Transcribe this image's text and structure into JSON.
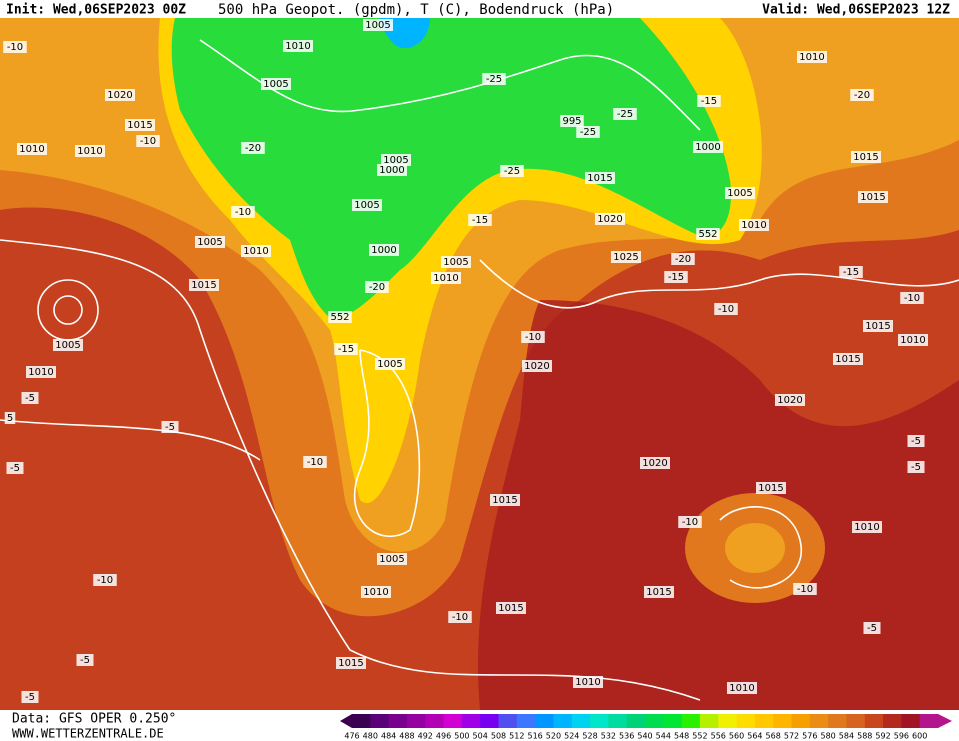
{
  "header": {
    "init": "Init: Wed,06SEP2023 00Z",
    "title": "500 hPa Geopot. (gpdm), T (C), Bodendruck (hPa)",
    "valid": "Valid: Wed,06SEP2023 12Z"
  },
  "footer": {
    "source": "Data: GFS OPER 0.250°",
    "site": "WWW.WETTERZENTRALE.DE"
  },
  "map": {
    "contour_labels": [
      "1010",
      "1005",
      "1005",
      "1020",
      "1015",
      "1010",
      "1010",
      "-10",
      "-20",
      "1005",
      "1000",
      "1005",
      "-10",
      "1005",
      "1010",
      "1000",
      "1005",
      "1010",
      "1015",
      "-20",
      "552",
      "1005",
      "1010",
      "-15",
      "1005",
      "-10",
      "1020",
      "-5",
      "-5",
      "-5",
      "-10",
      "1015",
      "1005",
      "1010",
      "-10",
      "-10",
      "1015",
      "1015",
      "-5",
      "-5",
      "1010",
      "1010",
      "1020",
      "1020",
      "1015",
      "-10",
      "1015",
      "-10",
      "1010",
      "-5",
      "-25",
      "-25",
      "-25",
      "995",
      "1000",
      "-25",
      "1015",
      "1005",
      "1010",
      "552",
      "1020",
      "1025",
      "-20",
      "-15",
      "-15",
      "-15",
      "1010",
      "-20",
      "1015",
      "1015",
      "-15",
      "-10",
      "-10",
      "1015",
      "1010",
      "1015",
      "-5",
      "-5",
      "-10",
      "5"
    ]
  },
  "colorbar": {
    "labels": [
      "476",
      "480",
      "484",
      "488",
      "492",
      "496",
      "500",
      "504",
      "508",
      "512",
      "516",
      "520",
      "524",
      "528",
      "532",
      "536",
      "540",
      "544",
      "548",
      "552",
      "556",
      "560",
      "564",
      "568",
      "572",
      "576",
      "580",
      "584",
      "588",
      "592",
      "596",
      "600"
    ],
    "colors": [
      "#3c0050",
      "#5a0078",
      "#78008c",
      "#9600a0",
      "#b400b4",
      "#d200d2",
      "#a000e6",
      "#7800f0",
      "#5050f0",
      "#3c78ff",
      "#0096ff",
      "#00b4ff",
      "#00d2f0",
      "#00e6c8",
      "#00dca0",
      "#00d278",
      "#00dc50",
      "#00e632",
      "#28f000",
      "#b4f000",
      "#f0f000",
      "#ffdc00",
      "#ffc800",
      "#ffb400",
      "#f5a000",
      "#eb8c14",
      "#e1781e",
      "#d7641e",
      "#c8461e",
      "#b4281e",
      "#a01423",
      "#b4148c"
    ]
  }
}
